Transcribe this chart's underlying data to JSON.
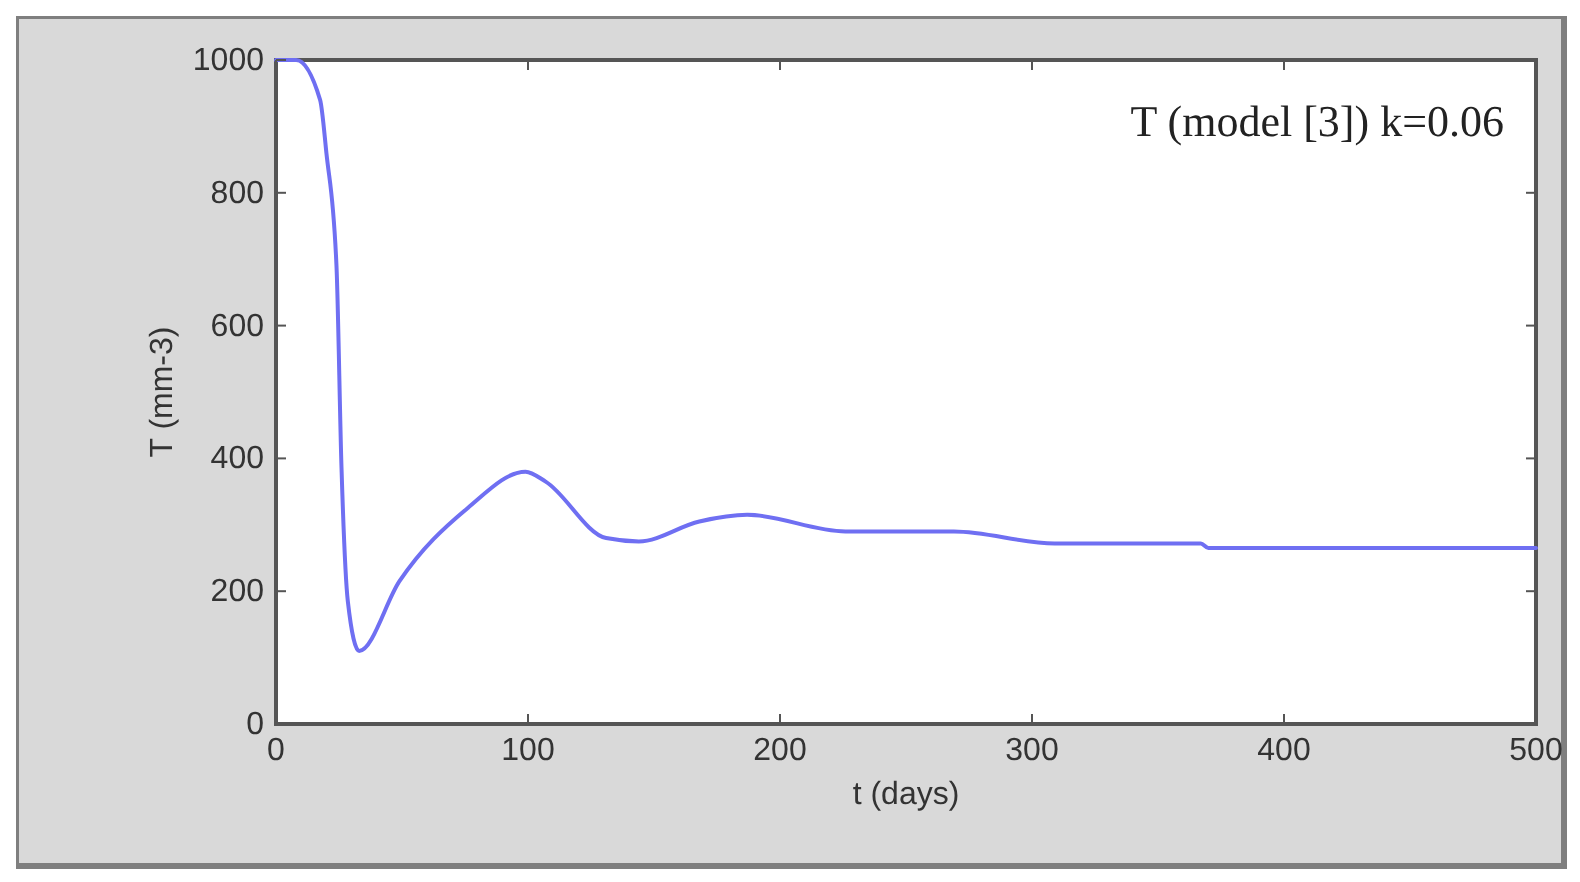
{
  "chart_data": {
    "type": "line",
    "xlabel": "t (days)",
    "ylabel": "T (mm-3)",
    "annotations": [
      "T (model [3]) k=0.06"
    ],
    "series": [
      {
        "color": "#6f6ff2",
        "x": [
          0,
          8,
          17.5,
          20,
          24,
          26,
          28.5,
          33,
          49,
          76,
          99,
          107,
          131,
          144,
          168,
          187,
          226,
          269,
          309,
          367,
          370,
          500
        ],
        "values": [
          1000,
          1000,
          940,
          860,
          690,
          385,
          185,
          110,
          215,
          325,
          380,
          365,
          280,
          275,
          305,
          315,
          290,
          290,
          272,
          272,
          265,
          265
        ]
      }
    ],
    "xlim": [
      0,
      500
    ],
    "ylim": [
      0,
      1000
    ],
    "xticks": [
      0,
      100,
      200,
      300,
      400,
      500
    ],
    "yticks": [
      0,
      200,
      400,
      600,
      800,
      1000
    ],
    "grid": false
  }
}
